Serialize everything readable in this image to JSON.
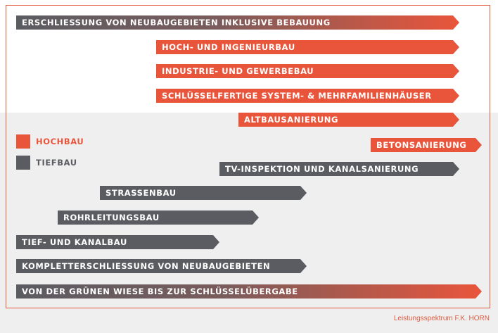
{
  "bars": {
    "erschliessung": "ERSCHLIESSUNG VON NEUBAUGEBIETEN INKLUSIVE BEBAUUNG",
    "hoch_ingenieur": "HOCH- UND INGENIEURBAU",
    "industrie": "INDUSTRIE- UND GEWERBEBAU",
    "schluesselfertig": "SCHLÜSSELFERTIGE SYSTEM- & MEHRFAMILIENHÄUSER",
    "altbau": "ALTBAUSANIERUNG",
    "beton": "BETONSANIERUNG",
    "tv_inspektion": "TV-INSPEKTION UND KANALSANIERUNG",
    "strassenbau": "STRASSENBAU",
    "rohrleitungsbau": "ROHRLEITUNGSBAU",
    "tief_kanal": "TIEF- UND KANALBAU",
    "komplett": "KOMPLETTERSCHLIESSUNG VON  NEUBAUGEBIETEN",
    "wiese": "VON DER GRÜNEN WIESE BIS ZUR SCHLÜSSELÜBERGABE"
  },
  "legend": {
    "hochbau": "HOCHBAU",
    "tiefbau": "TIEFBAU"
  },
  "caption": "Leistungsspektrum F.K. HORN",
  "colors": {
    "hochbau": "#e9553b",
    "tiefbau": "#5a5c62",
    "frame": "#e05a40"
  }
}
